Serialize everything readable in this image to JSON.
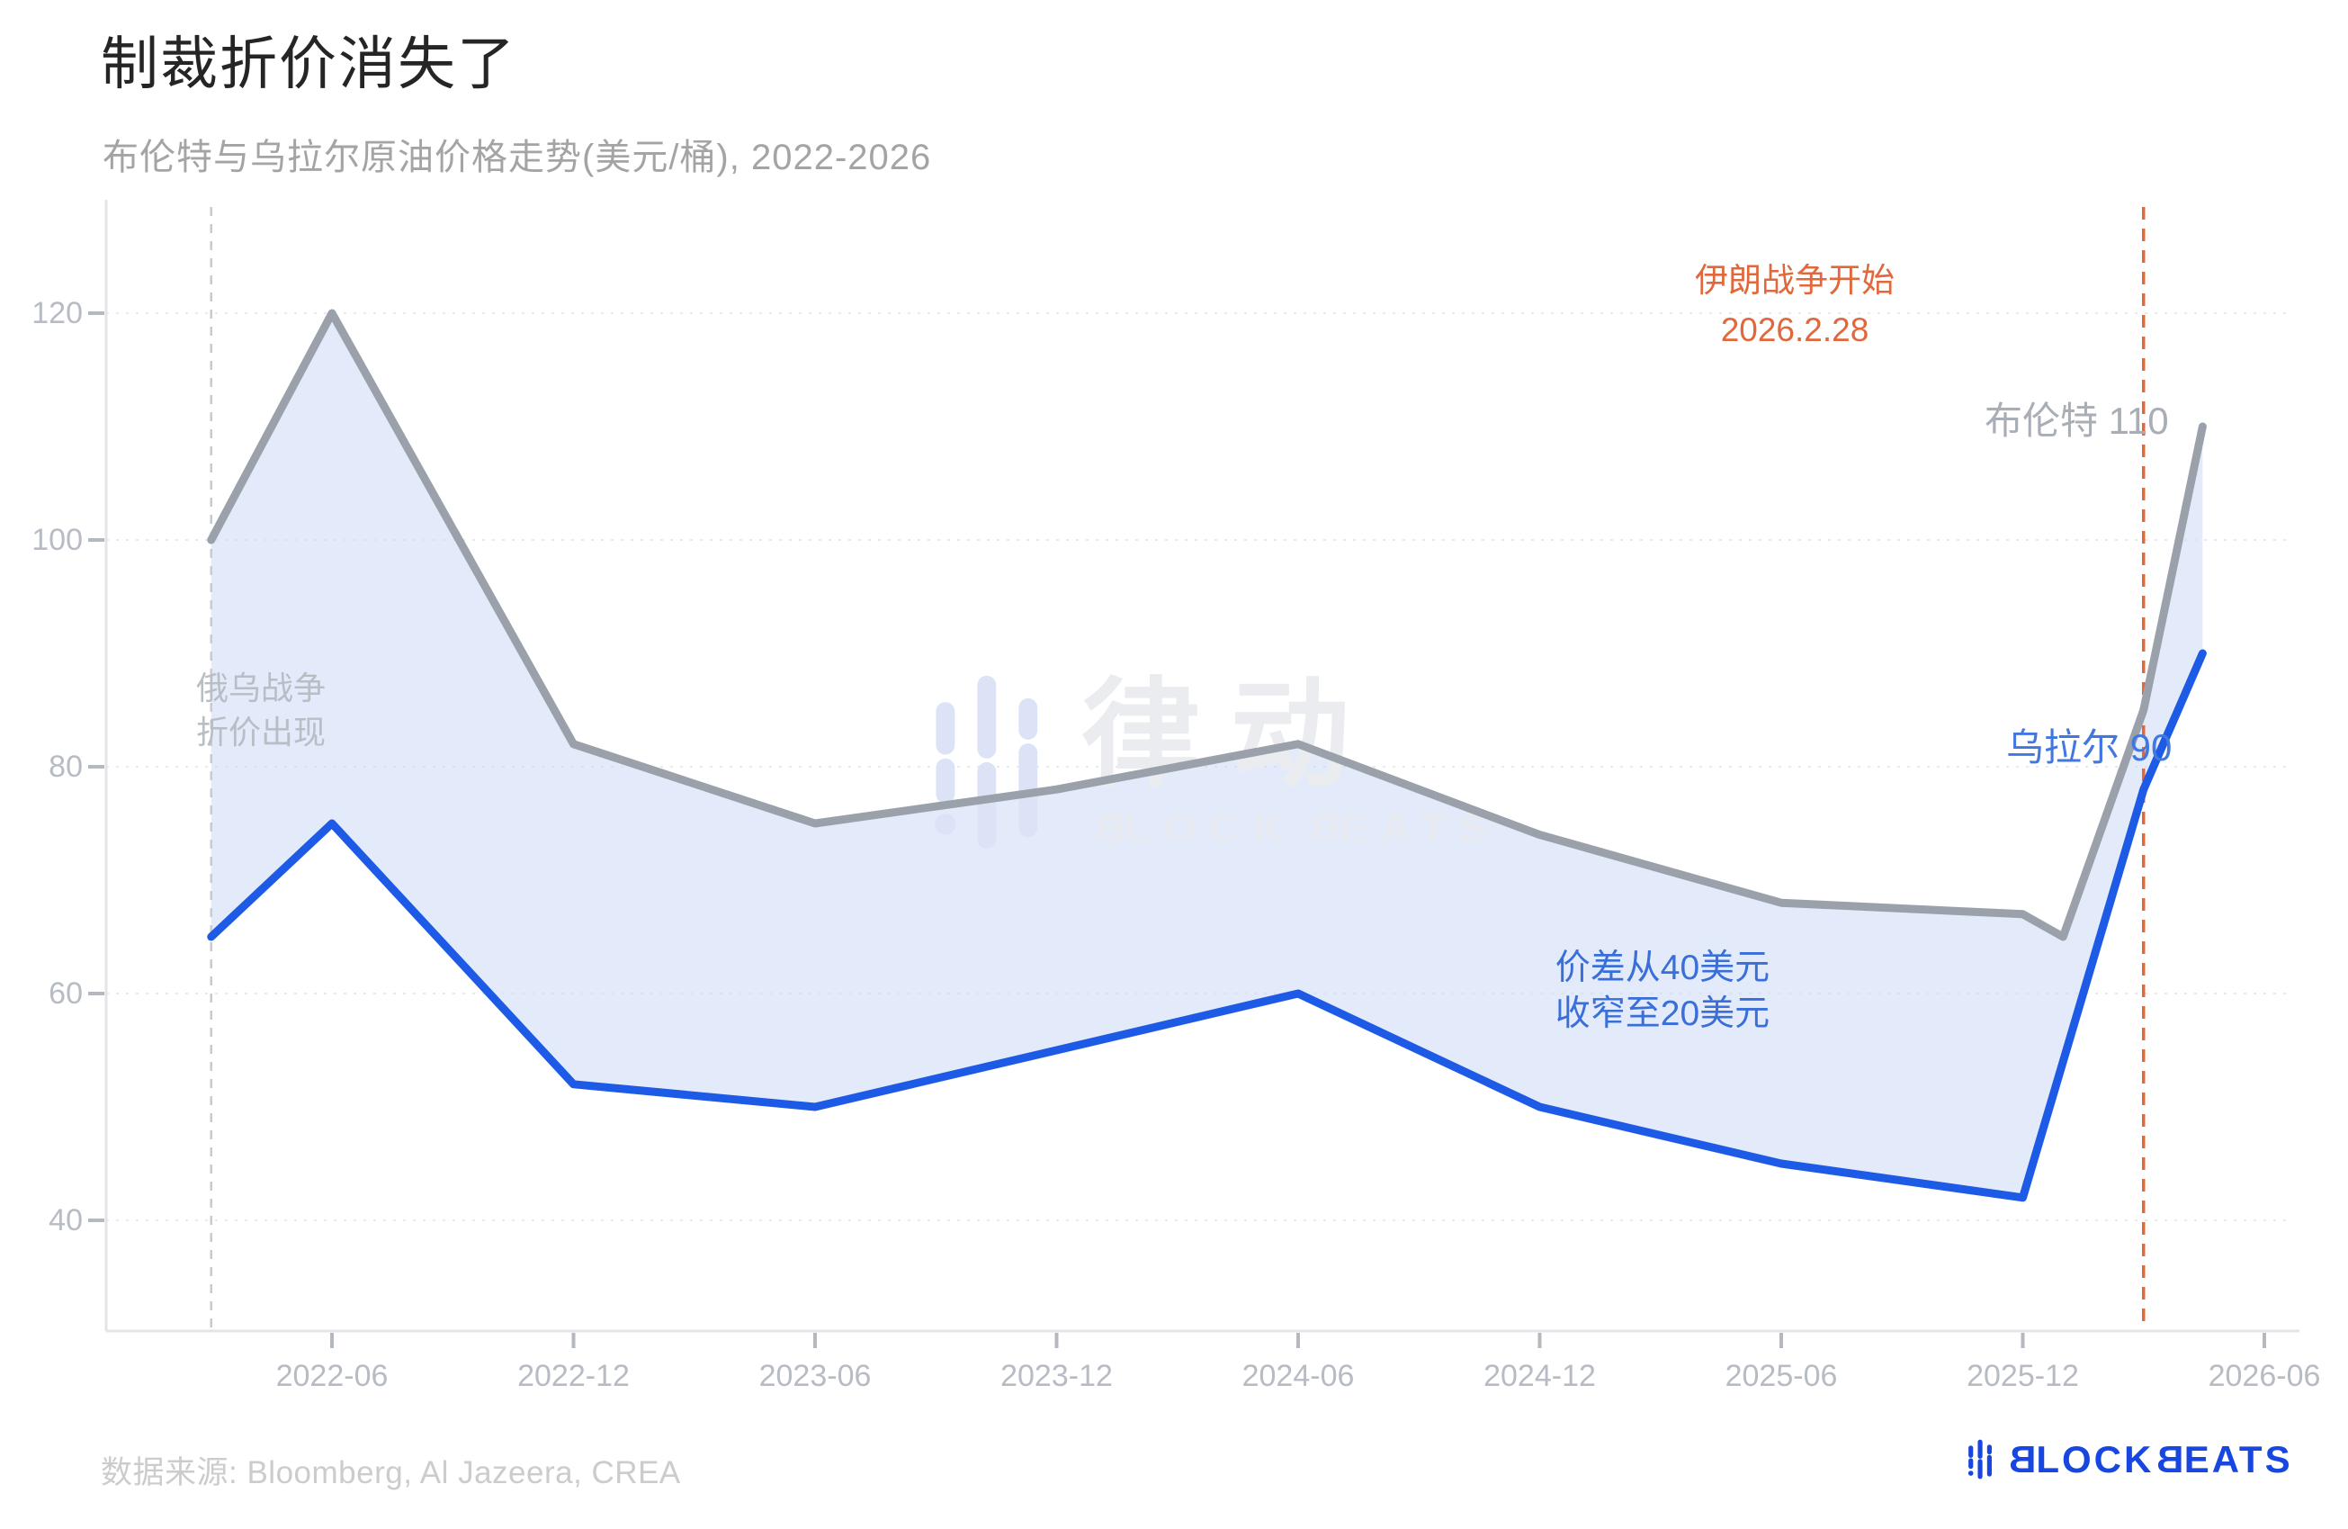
{
  "title": "制裁折价消失了",
  "subtitle": "布伦特与乌拉尔原油价格走势(美元/桶), 2022-2026",
  "watermark": {
    "cn": "律动",
    "en_b": "B",
    "en_lock": "LOCK",
    "en_eats": "EATS"
  },
  "annotations": {
    "ru_war_line1": "俄乌战争",
    "ru_war_line2": "折价出现",
    "iran_line1": "伊朗战争开始",
    "iran_line2": "2026.2.28",
    "spread_line1": "价差从40美元",
    "spread_line2": "收窄至20美元",
    "brent_end_label": "布伦特 110",
    "urals_end_label": "乌拉尔 90"
  },
  "footer": {
    "source": "数据来源: Bloomberg, Al Jazeera, CREA",
    "logo_b": "B",
    "logo_lock": "LOCK",
    "logo_eats": "EATS"
  },
  "colors": {
    "brent_line": "#9aa1aa",
    "urals_line": "#1d5ae5",
    "band_fill": "rgba(199,216,247,0.5)",
    "grid": "#e9e9ed",
    "axis": "#e3e4e8",
    "tick": "#b4b9c1",
    "ru_event_line": "#c6cad2",
    "iran_event_line": "#e4673a",
    "logo_blue": "#1746e0"
  },
  "chart_data": {
    "type": "line",
    "title": "制裁折价消失了",
    "subtitle": "布伦特与乌拉尔原油价格走势(美元/桶), 2022-2026",
    "ylabel": "美元/桶",
    "xlabel": "",
    "grid": true,
    "legend_position": "none",
    "ylim": [
      30,
      130
    ],
    "y_ticks": [
      40,
      60,
      80,
      100,
      120
    ],
    "x_tick_labels": [
      "2022-06",
      "2022-12",
      "2023-06",
      "2023-12",
      "2024-06",
      "2024-12",
      "2025-06",
      "2025-12",
      "2026-06"
    ],
    "series": [
      {
        "name": "布伦特",
        "color": "#9aa1aa",
        "points": [
          [
            "2022-03",
            100
          ],
          [
            "2022-06",
            120
          ],
          [
            "2022-12",
            82
          ],
          [
            "2023-06",
            75
          ],
          [
            "2023-12",
            78
          ],
          [
            "2024-06",
            82
          ],
          [
            "2024-12",
            74
          ],
          [
            "2025-06",
            68
          ],
          [
            "2025-12",
            67
          ],
          [
            "2026-01",
            65
          ],
          [
            "2026-03-01",
            85
          ],
          [
            "2026-04-15",
            110
          ]
        ]
      },
      {
        "name": "乌拉尔",
        "color": "#1d5ae5",
        "points": [
          [
            "2022-03",
            65
          ],
          [
            "2022-06",
            75
          ],
          [
            "2022-12",
            52
          ],
          [
            "2023-06",
            50
          ],
          [
            "2023-12",
            55
          ],
          [
            "2024-06",
            60
          ],
          [
            "2024-12",
            50
          ],
          [
            "2025-06",
            45
          ],
          [
            "2025-12",
            42
          ],
          [
            "2026-03-01",
            78
          ],
          [
            "2026-04-15",
            90
          ]
        ]
      }
    ],
    "event_lines": [
      {
        "x": "2022-03",
        "label": "俄乌战争 折价出现",
        "color": "#c6cad2"
      },
      {
        "x": "2026-03-01",
        "label": "伊朗战争开始 2026.2.28",
        "color": "#e4673a"
      }
    ],
    "end_labels": [
      {
        "series": "布伦特",
        "text": "布伦特 110",
        "value": 110
      },
      {
        "series": "乌拉尔",
        "text": "乌拉尔 90",
        "value": 90
      }
    ]
  }
}
